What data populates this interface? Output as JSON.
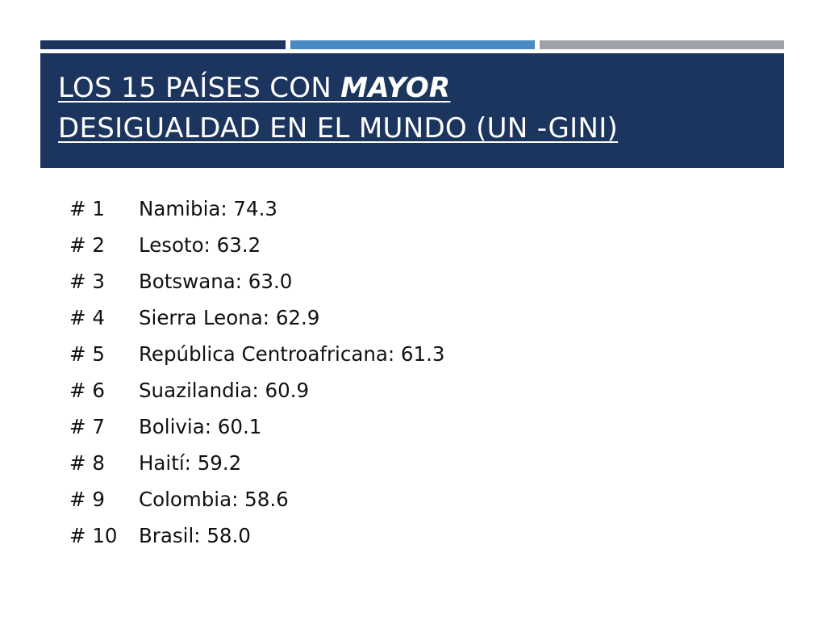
{
  "slide": {
    "title": {
      "part1": "LOS 15 PAÍSES CON ",
      "emphasis": "MAYOR",
      "part2": "DESIGUALDAD EN EL MUNDO (UN -GINI)"
    },
    "items": [
      {
        "rank": "# 1",
        "text": "Namibia: 74.3"
      },
      {
        "rank": "# 2",
        "text": "Lesoto: 63.2"
      },
      {
        "rank": "# 3",
        "text": "Botswana: 63.0"
      },
      {
        "rank": "# 4",
        "text": "Sierra Leona: 62.9"
      },
      {
        "rank": "# 5",
        "text": "República Centroafricana: 61.3"
      },
      {
        "rank": "# 6",
        "text": "Suazilandia: 60.9"
      },
      {
        "rank": "# 7",
        "text": "Bolivia: 60.1"
      },
      {
        "rank": "# 8",
        "text": "Haití: 59.2"
      },
      {
        "rank": "# 9",
        "text": "Colombia: 58.6"
      },
      {
        "rank": "# 10",
        "text": "Brasil: 58.0"
      }
    ],
    "colors": {
      "title_bg": "#1c355e",
      "accent_dark": "#1c355e",
      "accent_blue": "#4a8ac2",
      "accent_gray": "#9ea3a9"
    }
  }
}
